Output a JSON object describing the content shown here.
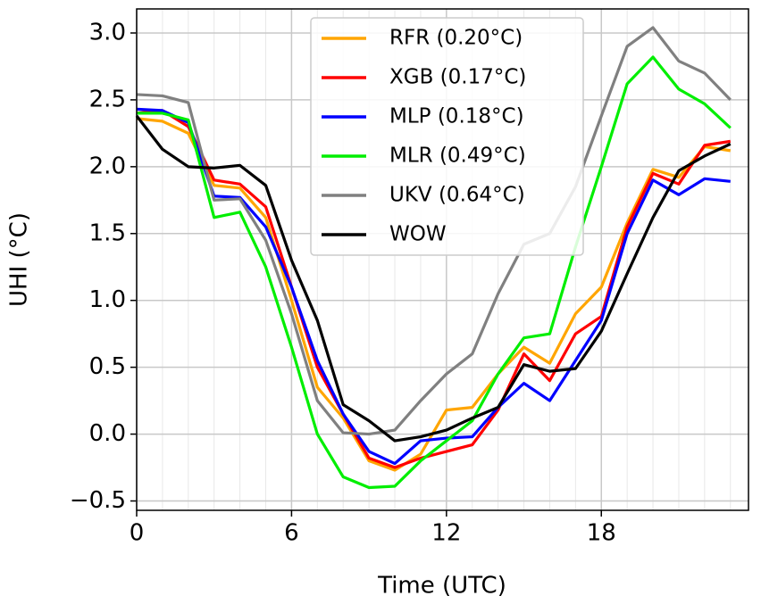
{
  "chart_data": {
    "type": "line",
    "x_label": "Time (UTC)",
    "y_label": "UHI (°C)",
    "x": [
      0,
      1,
      2,
      3,
      4,
      5,
      6,
      7,
      8,
      9,
      10,
      11,
      12,
      13,
      14,
      15,
      16,
      17,
      18,
      19,
      20,
      21,
      22,
      23
    ],
    "series": [
      {
        "name": "RFR (0.20°C)",
        "color": "#ffa500",
        "values": [
          2.36,
          2.34,
          2.25,
          1.86,
          1.84,
          1.62,
          1.0,
          0.35,
          0.12,
          -0.2,
          -0.27,
          -0.15,
          0.18,
          0.2,
          0.45,
          0.65,
          0.53,
          0.9,
          1.1,
          1.58,
          1.98,
          1.92,
          2.15,
          2.12
        ]
      },
      {
        "name": "XGB (0.17°C)",
        "color": "#ff0000",
        "values": [
          2.4,
          2.42,
          2.3,
          1.9,
          1.87,
          1.7,
          1.1,
          0.5,
          0.15,
          -0.18,
          -0.25,
          -0.18,
          -0.13,
          -0.08,
          0.18,
          0.6,
          0.4,
          0.75,
          0.88,
          1.55,
          1.95,
          1.87,
          2.16,
          2.19
        ]
      },
      {
        "name": "MLP (0.18°C)",
        "color": "#0000ff",
        "values": [
          2.43,
          2.42,
          2.33,
          1.78,
          1.77,
          1.55,
          1.1,
          0.55,
          0.15,
          -0.13,
          -0.22,
          -0.05,
          -0.03,
          -0.02,
          0.2,
          0.38,
          0.25,
          0.55,
          0.85,
          1.5,
          1.9,
          1.79,
          1.91,
          1.89
        ]
      },
      {
        "name": "MLR (0.49°C)",
        "color": "#00ee00",
        "values": [
          2.4,
          2.4,
          2.35,
          1.62,
          1.66,
          1.25,
          0.65,
          0.0,
          -0.32,
          -0.4,
          -0.39,
          -0.2,
          -0.05,
          0.1,
          0.45,
          0.72,
          0.75,
          1.4,
          2.0,
          2.62,
          2.82,
          2.58,
          2.47,
          2.29
        ]
      },
      {
        "name": "UKV (0.64°C)",
        "color": "#808080",
        "values": [
          2.54,
          2.53,
          2.48,
          1.75,
          1.76,
          1.45,
          0.9,
          0.25,
          0.01,
          0.0,
          0.03,
          0.25,
          0.45,
          0.6,
          1.05,
          1.42,
          1.5,
          1.85,
          2.38,
          2.9,
          3.04,
          2.79,
          2.7,
          2.5
        ]
      },
      {
        "name": "WOW",
        "color": "#000000",
        "values": [
          2.38,
          2.13,
          2.0,
          1.99,
          2.01,
          1.86,
          1.3,
          0.85,
          0.22,
          0.1,
          -0.05,
          -0.02,
          0.03,
          0.12,
          0.2,
          0.52,
          0.47,
          0.49,
          0.77,
          1.2,
          1.62,
          1.97,
          2.08,
          2.17
        ]
      }
    ],
    "xlim": [
      0,
      23.7
    ],
    "ylim": [
      -0.57,
      3.18
    ],
    "xticks": [
      0,
      6,
      12,
      18
    ],
    "xminorticks": [
      1,
      2,
      3,
      4,
      5,
      7,
      8,
      9,
      10,
      11,
      13,
      14,
      15,
      16,
      17,
      19,
      20,
      21,
      22,
      23
    ],
    "yticks": [
      {
        "value": -0.5,
        "label": "−0.5"
      },
      {
        "value": 0.0,
        "label": "0.0"
      },
      {
        "value": 0.5,
        "label": "0.5"
      },
      {
        "value": 1.0,
        "label": "1.0"
      },
      {
        "value": 1.5,
        "label": "1.5"
      },
      {
        "value": 2.0,
        "label": "2.0"
      },
      {
        "value": 2.5,
        "label": "2.5"
      },
      {
        "value": 3.0,
        "label": "3.0"
      }
    ],
    "grid": true,
    "legend": "upper center"
  }
}
